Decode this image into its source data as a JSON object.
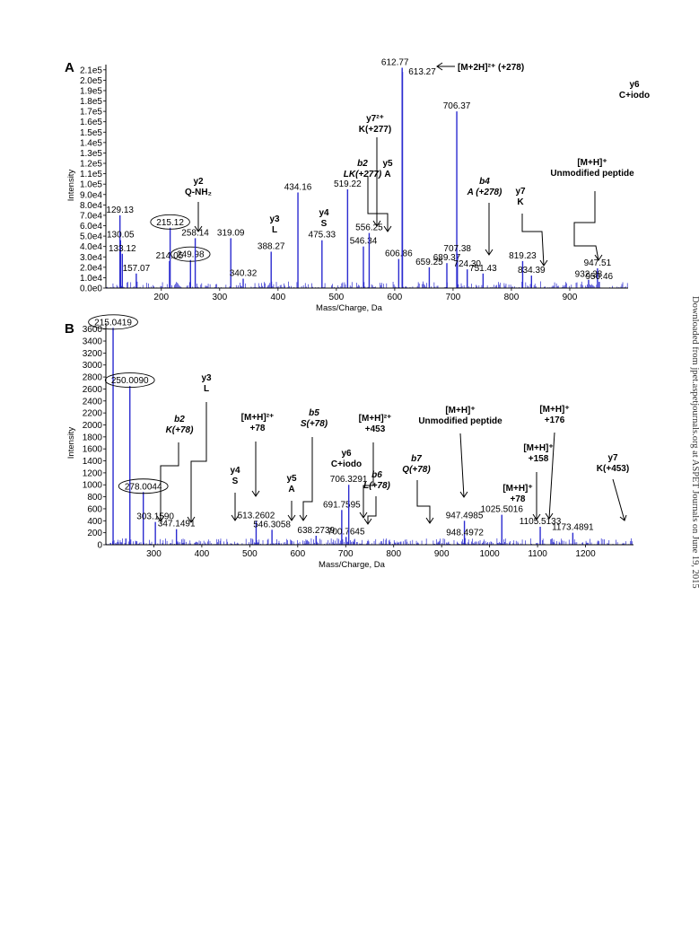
{
  "watermark": "Downloaded from jpet.aspetjournals.org at ASPET Journals on June 19, 2015",
  "colors": {
    "spectrum": "#2b2bd0",
    "text": "#000000",
    "arrow": "#000000"
  },
  "chart_data": [
    {
      "type": "bar",
      "panel": "A",
      "xlabel": "Mass/Charge, Da",
      "ylabel": "Intensity",
      "xlim": [
        105,
        1000
      ],
      "ylim": [
        0,
        215000
      ],
      "xticks": [
        200,
        300,
        400,
        500,
        600,
        700,
        800,
        900
      ],
      "yticks": [
        0,
        10000,
        20000,
        30000,
        40000,
        50000,
        60000,
        70000,
        80000,
        90000,
        100000,
        110000,
        120000,
        130000,
        140000,
        150000,
        160000,
        170000,
        180000,
        190000,
        200000,
        210000
      ],
      "ytick_labels": [
        "0.0e0",
        "1.0e4",
        "2.0e4",
        "3.0e4",
        "4.0e4",
        "5.0e4",
        "6.0e4",
        "7.0e4",
        "8.0e4",
        "9.0e4",
        "1.0e5",
        "1.1e5",
        "1.2e5",
        "1.3e5",
        "1.4e5",
        "1.5e5",
        "1.6e5",
        "1.7e5",
        "1.8e5",
        "1.9e5",
        "2.0e5",
        "2.1e5"
      ],
      "peaks": [
        {
          "mz": 129.13,
          "i": 70000,
          "label": "129.13"
        },
        {
          "mz": 130.05,
          "i": 46000,
          "label": "130.05"
        },
        {
          "mz": 133.12,
          "i": 33000,
          "label": "133.12"
        },
        {
          "mz": 157.07,
          "i": 14000,
          "label": "157.07"
        },
        {
          "mz": 214.05,
          "i": 26000,
          "label": "214.05"
        },
        {
          "mz": 215.12,
          "i": 58000,
          "label": "215.12",
          "circled": true
        },
        {
          "mz": 249.98,
          "i": 27000,
          "label": "249.98",
          "circled": true
        },
        {
          "mz": 258.14,
          "i": 48000,
          "label": "258.14"
        },
        {
          "mz": 319.09,
          "i": 48000,
          "label": "319.09"
        },
        {
          "mz": 340.32,
          "i": 9000,
          "label": "340.32"
        },
        {
          "mz": 388.27,
          "i": 35000,
          "label": "388.27"
        },
        {
          "mz": 434.16,
          "i": 92000,
          "label": "434.16"
        },
        {
          "mz": 475.33,
          "i": 46000,
          "label": "475.33"
        },
        {
          "mz": 519.22,
          "i": 95000,
          "label": "519.22"
        },
        {
          "mz": 546.34,
          "i": 40000,
          "label": "546.34"
        },
        {
          "mz": 556.25,
          "i": 53000,
          "label": "556.25"
        },
        {
          "mz": 606.86,
          "i": 28000,
          "label": "606.86"
        },
        {
          "mz": 612.77,
          "i": 212000,
          "label": "612.77"
        },
        {
          "mz": 613.27,
          "i": 208000,
          "label": "613.27"
        },
        {
          "mz": 659.25,
          "i": 20000,
          "label": "659.25"
        },
        {
          "mz": 689.37,
          "i": 24000,
          "label": "689.37"
        },
        {
          "mz": 706.37,
          "i": 170000,
          "label": "706.37"
        },
        {
          "mz": 707.38,
          "i": 33000,
          "label": "707.38"
        },
        {
          "mz": 724.3,
          "i": 18000,
          "label": "724.30"
        },
        {
          "mz": 751.43,
          "i": 14000,
          "label": "751.43"
        },
        {
          "mz": 819.23,
          "i": 26000,
          "label": "819.23"
        },
        {
          "mz": 834.39,
          "i": 12000,
          "label": "834.39"
        },
        {
          "mz": 932.28,
          "i": 8000,
          "label": "932.28"
        },
        {
          "mz": 947.51,
          "i": 19000,
          "label": "947.51"
        },
        {
          "mz": 950.46,
          "i": 6000,
          "label": "950.46"
        }
      ],
      "annotations": [
        {
          "lines": [
            "[M+2H]²⁺ (+278)"
          ],
          "bold": true,
          "italic": false
        },
        {
          "lines": [
            "y6",
            "C+iodo"
          ],
          "bold": true,
          "italic": false
        },
        {
          "lines": [
            "y7²⁺",
            "K(+277)"
          ],
          "bold": true,
          "italic": false
        },
        {
          "lines": [
            "b2",
            "LK(+277)"
          ],
          "bold": true,
          "italic": true
        },
        {
          "lines": [
            "y5",
            "A"
          ],
          "bold": true,
          "italic": false
        },
        {
          "lines": [
            "b4",
            "A (+278)"
          ],
          "bold": true,
          "italic": true
        },
        {
          "lines": [
            "y7",
            "K"
          ],
          "bold": true,
          "italic": false
        },
        {
          "lines": [
            "[M+H]⁺",
            "Unmodified peptide"
          ],
          "bold": true,
          "italic": false
        },
        {
          "lines": [
            "y2",
            "Q-NH₂"
          ],
          "bold": true,
          "italic": false
        },
        {
          "lines": [
            "y3",
            "L"
          ],
          "bold": true,
          "italic": false
        },
        {
          "lines": [
            "y4",
            "S"
          ],
          "bold": true,
          "italic": false
        }
      ]
    },
    {
      "type": "bar",
      "panel": "B",
      "xlabel": "Mass/Charge, Da",
      "ylabel": "Intensity",
      "xlim": [
        200,
        1300
      ],
      "ylim": [
        0,
        3700
      ],
      "xticks": [
        300,
        400,
        500,
        600,
        700,
        800,
        900,
        1000,
        1100,
        1200
      ],
      "yticks": [
        0,
        200,
        400,
        600,
        800,
        1000,
        1200,
        1400,
        1600,
        1800,
        2000,
        2200,
        2400,
        2600,
        2800,
        3000,
        3200,
        3400,
        3600
      ],
      "ytick_labels": [
        "0",
        "200",
        "400",
        "600",
        "800",
        "1000",
        "1200",
        "1400",
        "1600",
        "1800",
        "2000",
        "2200",
        "2400",
        "2600",
        "2800",
        "3000",
        "3200",
        "3400",
        "3600"
      ],
      "peaks": [
        {
          "mz": 215.0419,
          "i": 3620,
          "label": "215.0419",
          "circled": true
        },
        {
          "mz": 250.009,
          "i": 2650,
          "label": "250.0090",
          "circled": true
        },
        {
          "mz": 278.0044,
          "i": 880,
          "label": "278.0044",
          "circled": true
        },
        {
          "mz": 303.159,
          "i": 380,
          "label": "303.1590"
        },
        {
          "mz": 347.1491,
          "i": 260,
          "label": "347.1491"
        },
        {
          "mz": 513.2602,
          "i": 400,
          "label": "513.2602"
        },
        {
          "mz": 546.3058,
          "i": 250,
          "label": "546.3058"
        },
        {
          "mz": 638.2739,
          "i": 150,
          "label": "638.2739"
        },
        {
          "mz": 691.7595,
          "i": 580,
          "label": "691.7595"
        },
        {
          "mz": 700.7645,
          "i": 130,
          "label": "700.7645"
        },
        {
          "mz": 706.3291,
          "i": 1000,
          "label": "706.3291"
        },
        {
          "mz": 947.4985,
          "i": 400,
          "label": "947.4985"
        },
        {
          "mz": 948.4972,
          "i": 110,
          "label": "948.4972"
        },
        {
          "mz": 1025.5016,
          "i": 500,
          "label": "1025.5016"
        },
        {
          "mz": 1105.5133,
          "i": 300,
          "label": "1105.5133"
        },
        {
          "mz": 1173.4891,
          "i": 200,
          "label": "1173.4891"
        }
      ],
      "annotations": [
        {
          "lines": [
            "y3",
            "L"
          ],
          "bold": true,
          "italic": false
        },
        {
          "lines": [
            "b2",
            "K(+78)"
          ],
          "bold": true,
          "italic": true
        },
        {
          "lines": [
            "[M+H]²⁺",
            "+78"
          ],
          "bold": true,
          "italic": false
        },
        {
          "lines": [
            "b5",
            "S(+78)"
          ],
          "bold": true,
          "italic": true
        },
        {
          "lines": [
            "y5",
            "A"
          ],
          "bold": true,
          "italic": false
        },
        {
          "lines": [
            "y4",
            "S"
          ],
          "bold": true,
          "italic": false
        },
        {
          "lines": [
            "[M+H]²⁺",
            "+453"
          ],
          "bold": true,
          "italic": false
        },
        {
          "lines": [
            "y6",
            "C+iodo"
          ],
          "bold": true,
          "italic": false
        },
        {
          "lines": [
            "b6",
            "L(+78)"
          ],
          "bold": true,
          "italic": true
        },
        {
          "lines": [
            "b7",
            "Q(+78)"
          ],
          "bold": true,
          "italic": true
        },
        {
          "lines": [
            "[M+H]⁺",
            "Unmodified peptide"
          ],
          "bold": true,
          "italic": false
        },
        {
          "lines": [
            "[M+H]⁺",
            "+176"
          ],
          "bold": true,
          "italic": false
        },
        {
          "lines": [
            "[M+H]⁺",
            "+158"
          ],
          "bold": true,
          "italic": false
        },
        {
          "lines": [
            "[M+H]⁺",
            "+78"
          ],
          "bold": true,
          "italic": false
        },
        {
          "lines": [
            "y7",
            "K(+453)"
          ],
          "bold": true,
          "italic": false
        }
      ]
    }
  ]
}
